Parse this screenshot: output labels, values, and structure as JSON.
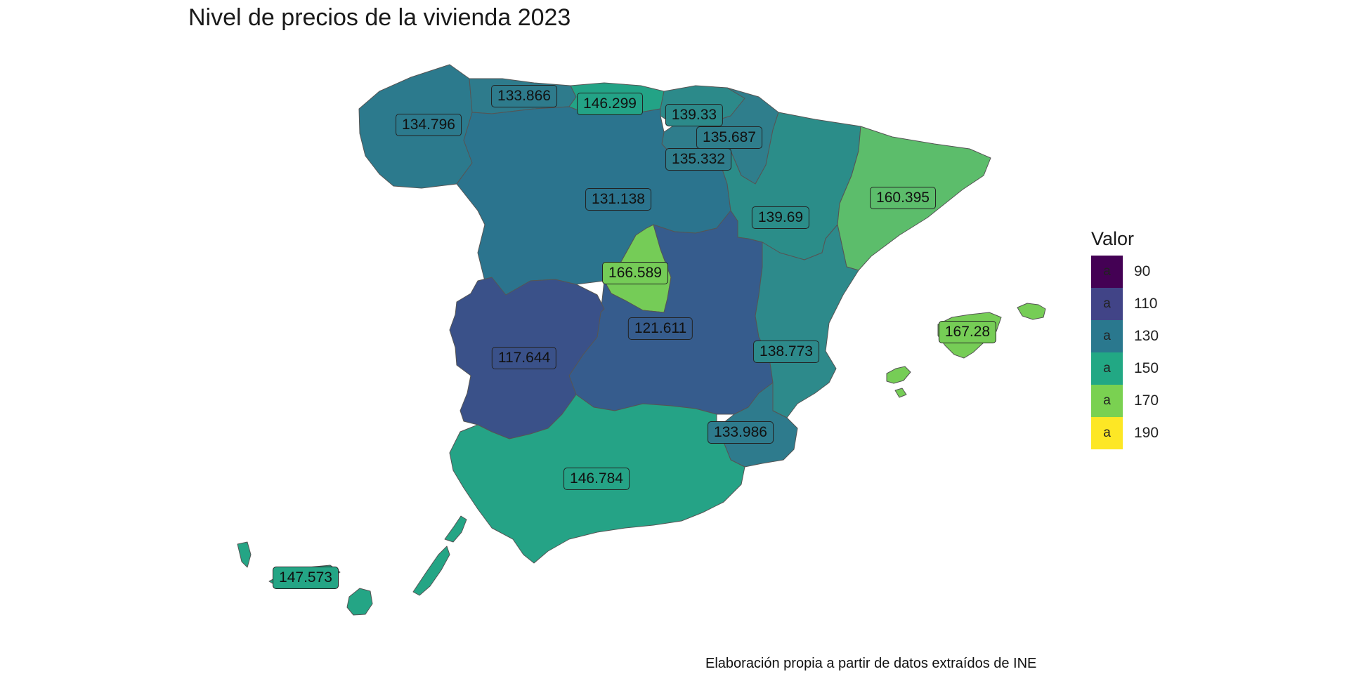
{
  "title": "Nivel de precios de la vivienda 2023",
  "caption": "Elaboración propia a partir de datos extraídos de INE",
  "legend": {
    "title": "Valor",
    "entries": [
      {
        "glyph": "a",
        "value": "90",
        "color": "#440154"
      },
      {
        "glyph": "a",
        "value": "110",
        "color": "#414487"
      },
      {
        "glyph": "a",
        "value": "130",
        "color": "#2a788e"
      },
      {
        "glyph": "a",
        "value": "150",
        "color": "#22a884"
      },
      {
        "glyph": "a",
        "value": "170",
        "color": "#7ad151"
      },
      {
        "glyph": "a",
        "value": "190",
        "color": "#fde725"
      }
    ]
  },
  "regions": [
    {
      "id": "galicia",
      "label": "134.796",
      "color": "#2c7a8d"
    },
    {
      "id": "asturias",
      "label": "133.866",
      "color": "#2e7b8c"
    },
    {
      "id": "cantabria",
      "label": "146.299",
      "color": "#23a386"
    },
    {
      "id": "pais-vasco",
      "label": "139.33",
      "color": "#2c8a8a"
    },
    {
      "id": "navarra",
      "label": "135.687",
      "color": "#2f7e8c"
    },
    {
      "id": "la-rioja",
      "label": "135.332",
      "color": "#2f7d8c"
    },
    {
      "id": "castilla-leon",
      "label": "131.138",
      "color": "#2b748e"
    },
    {
      "id": "aragon",
      "label": "139.69",
      "color": "#2b8d89"
    },
    {
      "id": "cataluna",
      "label": "160.395",
      "color": "#5cbd6b"
    },
    {
      "id": "madrid",
      "label": "166.589",
      "color": "#75cc57"
    },
    {
      "id": "castilla-la-mancha",
      "label": "121.611",
      "color": "#365c8d"
    },
    {
      "id": "extremadura",
      "label": "117.644",
      "color": "#3a5189"
    },
    {
      "id": "valencia",
      "label": "138.773",
      "color": "#2d8a8b"
    },
    {
      "id": "murcia",
      "label": "133.986",
      "color": "#2e7b8d"
    },
    {
      "id": "andalucia",
      "label": "146.784",
      "color": "#25a386"
    },
    {
      "id": "baleares",
      "label": "167.28",
      "color": "#76cd56"
    },
    {
      "id": "canarias",
      "label": "147.573",
      "color": "#24a585"
    }
  ]
}
